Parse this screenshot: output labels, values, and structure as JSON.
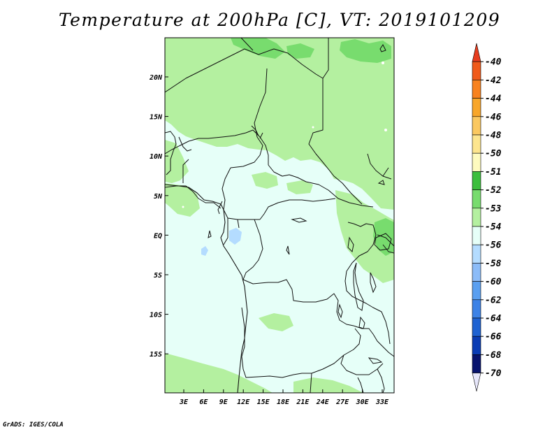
{
  "title": "Temperature at 200hPa [C], VT: 2019101209",
  "footer": "GrADS: IGES/COLA",
  "map": {
    "lon_ticks": [
      "3E",
      "6E",
      "9E",
      "12E",
      "15E",
      "18E",
      "21E",
      "24E",
      "27E",
      "30E",
      "33E"
    ],
    "lat_ticks": [
      "20N",
      "15N",
      "10N",
      "5N",
      "EQ",
      "5S",
      "10S",
      "15S"
    ]
  },
  "colorbar": {
    "labels": [
      "-40",
      "-42",
      "-44",
      "-46",
      "-48",
      "-50",
      "-51",
      "-52",
      "-53",
      "-54",
      "-56",
      "-58",
      "-60",
      "-62",
      "-64",
      "-66",
      "-68",
      "-70"
    ],
    "colors": [
      "#e63c1e",
      "#f05a1a",
      "#f8821e",
      "#f8a62a",
      "#fbc860",
      "#fde58e",
      "#fefbbf",
      "#3cbe3c",
      "#78dc6e",
      "#b4f0a0",
      "#e6fff8",
      "#b4dcff",
      "#8cbcf8",
      "#5a9ff0",
      "#3c82e6",
      "#1e62d2",
      "#0a3cb4",
      "#08146e",
      "#e6e6fa"
    ]
  },
  "colors": {
    "base_field": "#e6fff8",
    "band_minus53": "#b4f0a0",
    "band_minus52": "#78dc6e",
    "band_minus56": "#b4dcff"
  }
}
